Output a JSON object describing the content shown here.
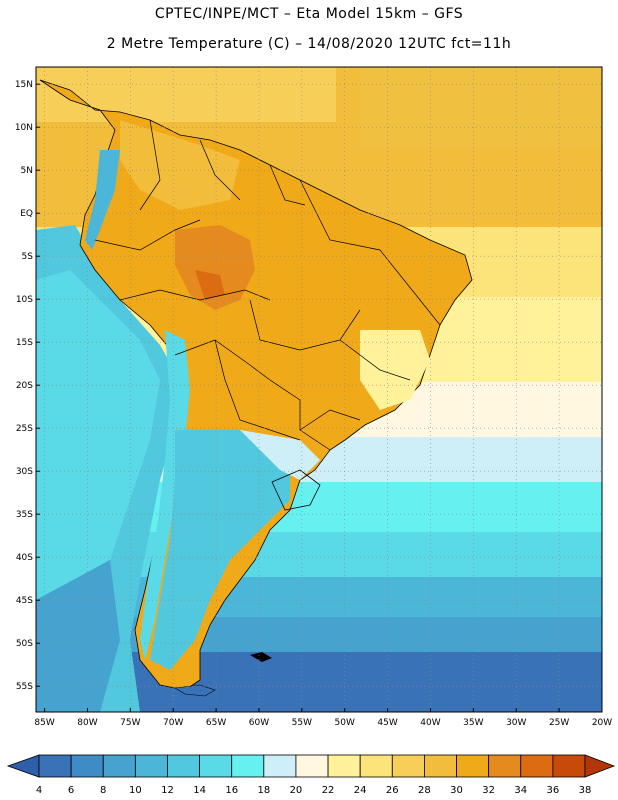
{
  "header": {
    "line1": "CPTEC/INPE/MCT –  Eta Model 15km – GFS",
    "line2": "2 Metre Temperature (C) – 14/08/2020 12UTC fct=11h"
  },
  "map": {
    "lon_range": [
      -86,
      -20
    ],
    "lat_range": [
      -58,
      17
    ],
    "lat_ticks": [
      "15N",
      "10N",
      "5N",
      "EQ",
      "5S",
      "10S",
      "15S",
      "20S",
      "25S",
      "30S",
      "35S",
      "40S",
      "45S",
      "50S",
      "55S"
    ],
    "lon_ticks": [
      "85W",
      "80W",
      "75W",
      "70W",
      "65W",
      "60W",
      "55W",
      "50W",
      "45W",
      "40W",
      "35W",
      "30W",
      "25W",
      "20W"
    ],
    "grid": "dotted"
  },
  "colorbar": {
    "labels": [
      "4",
      "6",
      "8",
      "10",
      "12",
      "14",
      "16",
      "18",
      "20",
      "22",
      "24",
      "26",
      "28",
      "30",
      "32",
      "34",
      "36",
      "38"
    ],
    "colors": [
      "#3a72b8",
      "#3f8bc6",
      "#46a3cf",
      "#4cb6d9",
      "#52c8df",
      "#5ad9e6",
      "#66f0f0",
      "#cfeff8",
      "#fff7e0",
      "#fff29a",
      "#fde47a",
      "#f7cf58",
      "#f2bd3a",
      "#f0a918",
      "#e58a1e",
      "#dd6b12",
      "#c84a0a"
    ],
    "low_color": "#2f5fa8",
    "high_color": "#b3360a"
  }
}
